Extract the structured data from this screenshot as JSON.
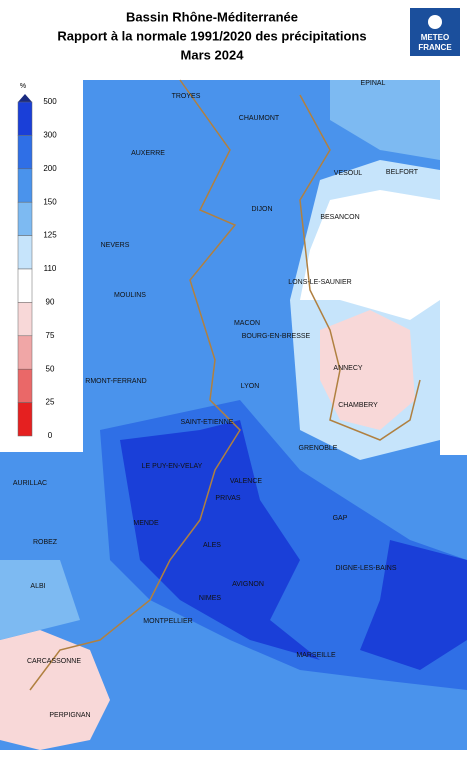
{
  "header": {
    "title_lines": [
      "Bassin Rhône-Méditerranée",
      "Rapport à la normale 1991/2020 des précipitations",
      "Mars 2024"
    ]
  },
  "logo": {
    "lines": [
      "METEO",
      "FRANCE"
    ]
  },
  "legend": {
    "unit": "%",
    "ticks": [
      500,
      300,
      200,
      150,
      125,
      110,
      90,
      75,
      50,
      25,
      0
    ],
    "colors": [
      "#1a3fd8",
      "#2f6fe6",
      "#4a93ec",
      "#7dbaf2",
      "#c6e4fb",
      "#ffffff",
      "#f8d8d8",
      "#f0a6a6",
      "#ea6868",
      "#e52020"
    ]
  },
  "cities": [
    "TROYES",
    "CHAUMONT",
    "EPINAL",
    "AUXERRE",
    "VESOUL",
    "BELFORT",
    "DIJON",
    "BESANCON",
    "NEVERS",
    "LONS-LE-SAUNIER",
    "MOULINS",
    "MACON",
    "BOURG-EN-BRESSE",
    "ANNECY",
    "RMONT-FERRAND",
    "LYON",
    "CHAMBERY",
    "SAINT-ETIENNE",
    "GRENOBLE",
    "LE PUY-EN-VELAY",
    "VALENCE",
    "AURILLAC",
    "PRIVAS",
    "GAP",
    "MENDE",
    "ALES",
    "ROBEZ",
    "DIGNE-LES-BAINS",
    "ALBI",
    "AVIGNON",
    "NIMES",
    "MONTPELLIER",
    "MARSEILLE",
    "CARCASSONNE",
    "PERPIGNAN"
  ]
}
